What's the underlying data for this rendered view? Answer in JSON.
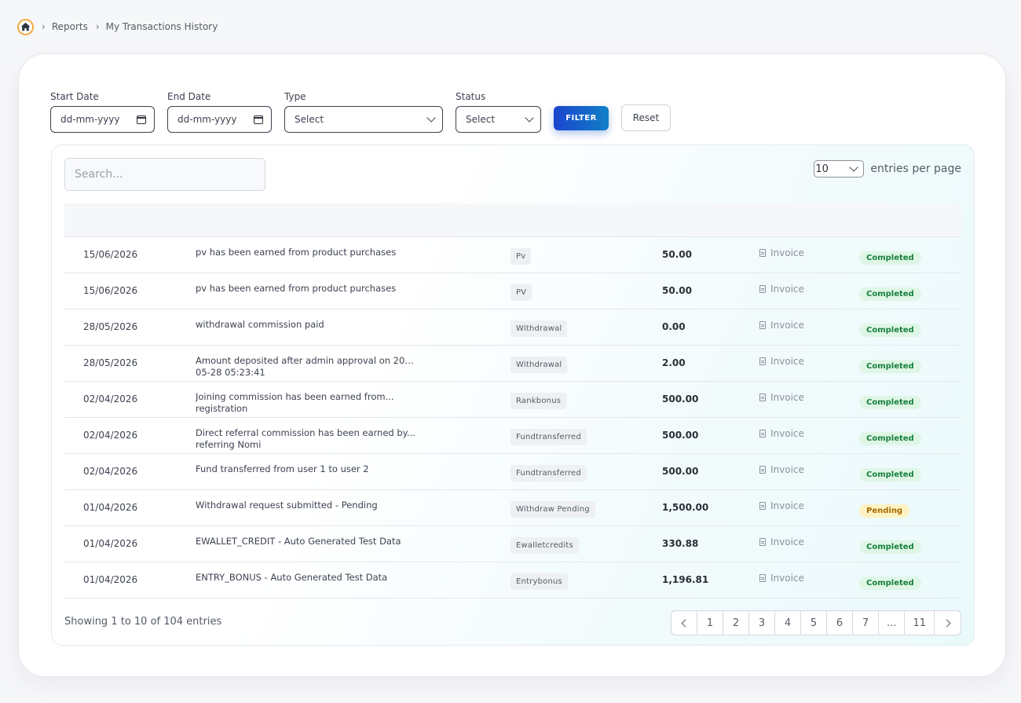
{
  "breadcrumb": {
    "home_icon": "home-icon",
    "items": [
      "Reports",
      "My Transactions History"
    ]
  },
  "filters": {
    "start_date": {
      "label": "Start Date",
      "placeholder": "dd-mm-yyyy"
    },
    "end_date": {
      "label": "End Date",
      "placeholder": "dd-mm-yyyy"
    },
    "type": {
      "label": "Type",
      "value": "Select"
    },
    "status": {
      "label": "Status",
      "value": "Select"
    },
    "filter_label": "FILTER",
    "reset_label": "Reset"
  },
  "table": {
    "search_placeholder": "Search...",
    "entries_value": "10",
    "entries_label": "entries per page",
    "rows": [
      {
        "date": "15/06/2026",
        "desc_l1": "pv has been earned from product purchases",
        "desc_l2": "",
        "type": "Pv",
        "amount": "50.00",
        "invoice": "Invoice",
        "status": "Completed"
      },
      {
        "date": "15/06/2026",
        "desc_l1": "pv has been earned from product purchases",
        "desc_l2": "",
        "type": "PV",
        "amount": "50.00",
        "invoice": "Invoice",
        "status": "Completed"
      },
      {
        "date": "28/05/2026",
        "desc_l1": "withdrawal commission paid",
        "desc_l2": "",
        "type": "Withdrawal",
        "amount": "0.00",
        "invoice": "Invoice",
        "status": "Completed"
      },
      {
        "date": "28/05/2026",
        "desc_l1": "Amount deposited after admin approval on 2026...",
        "desc_l2": "05-28 05:23:41",
        "type": "Withdrawal",
        "amount": "2.00",
        "invoice": "Invoice",
        "status": "Completed"
      },
      {
        "date": "02/04/2026",
        "desc_l1": "Joining commission has been earned from...",
        "desc_l2": "registration",
        "type": "Rankbonus",
        "amount": "500.00",
        "invoice": "Invoice",
        "status": "Completed"
      },
      {
        "date": "02/04/2026",
        "desc_l1": "Direct referral commission has been earned by...",
        "desc_l2": "referring Nomi",
        "type": "Fundtransferred",
        "amount": "500.00",
        "invoice": "Invoice",
        "status": "Completed"
      },
      {
        "date": "02/04/2026",
        "desc_l1": "Fund transferred from user 1 to user 2",
        "desc_l2": "",
        "type": "Fundtransferred",
        "amount": "500.00",
        "invoice": "Invoice",
        "status": "Completed"
      },
      {
        "date": "01/04/2026",
        "desc_l1": "Withdrawal request submitted - Pending",
        "desc_l2": "",
        "type": "Withdraw Pending",
        "amount": "1,500.00",
        "invoice": "Invoice",
        "status": "Pending"
      },
      {
        "date": "01/04/2026",
        "desc_l1": "EWALLET_CREDIT - Auto Generated Test Data",
        "desc_l2": "",
        "type": "Ewalletcredits",
        "amount": "330.88",
        "invoice": "Invoice",
        "status": "Completed"
      },
      {
        "date": "01/04/2026",
        "desc_l1": "ENTRY_BONUS - Auto Generated Test Data",
        "desc_l2": "",
        "type": "Entrybonus",
        "amount": "1,196.81",
        "invoice": "Invoice",
        "status": "Completed"
      }
    ],
    "showing_text": "Showing 1 to 10 of 104 entries",
    "pages": [
      "1",
      "2",
      "3",
      "4",
      "5",
      "6",
      "7",
      "...",
      "11"
    ]
  },
  "colors": {
    "accent": "#1a45cf",
    "completed_bg": "#dff6e6",
    "completed_text": "#17803d",
    "pending_bg": "#fdf2c4",
    "pending_text": "#a66a00"
  }
}
